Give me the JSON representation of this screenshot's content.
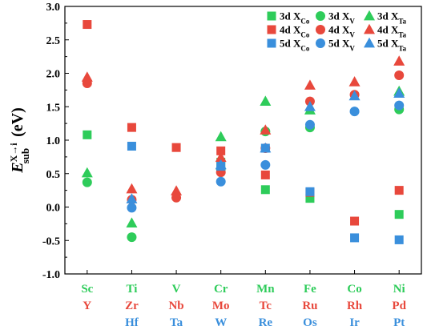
{
  "chart_data": {
    "type": "scatter",
    "ylabel": {
      "main": "E",
      "sub": "sub",
      "sup": "X→i",
      "unit": "(eV)"
    },
    "ylim": [
      -1.0,
      3.0
    ],
    "yticks": [
      "-1.0",
      "-0.5",
      "0.0",
      "0.5",
      "1.0",
      "1.5",
      "2.0",
      "2.5",
      "3.0"
    ],
    "yticks_values": [
      -1.0,
      -0.5,
      0.0,
      0.5,
      1.0,
      1.5,
      2.0,
      2.5,
      3.0
    ],
    "grid": false,
    "legend_position": "top-right",
    "colors": {
      "3d": "#2ecc5a",
      "4d": "#e8483c",
      "5d": "#3a8fdc"
    },
    "category_rows": [
      {
        "row": "3d",
        "labels": [
          "Sc",
          "Ti",
          "V",
          "Cr",
          "Mn",
          "Fe",
          "Co",
          "Ni"
        ]
      },
      {
        "row": "4d",
        "labels": [
          "Y",
          "Zr",
          "Nb",
          "Mo",
          "Tc",
          "Ru",
          "Rh",
          "Pd"
        ]
      },
      {
        "row": "5d",
        "labels": [
          "Hf",
          "Ta",
          "W",
          "Re",
          "Os",
          "Ir",
          "Pt"
        ]
      }
    ],
    "legend": [
      {
        "row": "3d",
        "marker": "square",
        "prefix": "3d X",
        "sub": "Co"
      },
      {
        "row": "3d",
        "marker": "circle",
        "prefix": "3d X",
        "sub": "V"
      },
      {
        "row": "3d",
        "marker": "triangle",
        "prefix": "3d X",
        "sub": "Ta"
      },
      {
        "row": "4d",
        "marker": "square",
        "prefix": "4d X",
        "sub": "Co"
      },
      {
        "row": "4d",
        "marker": "circle",
        "prefix": "4d X",
        "sub": "V"
      },
      {
        "row": "4d",
        "marker": "triangle",
        "prefix": "4d X",
        "sub": "Ta"
      },
      {
        "row": "5d",
        "marker": "square",
        "prefix": "5d X",
        "sub": "Co"
      },
      {
        "row": "5d",
        "marker": "circle",
        "prefix": "5d X",
        "sub": "V"
      },
      {
        "row": "5d",
        "marker": "triangle",
        "prefix": "5d X",
        "sub": "Ta"
      }
    ],
    "series": [
      {
        "row": "3d",
        "marker": "square",
        "values": [
          1.08,
          null,
          null,
          0.67,
          0.26,
          0.13,
          null,
          -0.11
        ]
      },
      {
        "row": "3d",
        "marker": "circle",
        "values": [
          0.37,
          -0.45,
          null,
          0.57,
          1.13,
          1.19,
          null,
          1.46
        ]
      },
      {
        "row": "3d",
        "marker": "triangle",
        "values": [
          0.51,
          -0.24,
          null,
          1.05,
          1.58,
          1.45,
          null,
          1.73
        ]
      },
      {
        "row": "4d",
        "marker": "square",
        "values": [
          2.73,
          1.19,
          0.89,
          0.84,
          0.48,
          0.22,
          -0.21,
          0.25
        ]
      },
      {
        "row": "4d",
        "marker": "circle",
        "values": [
          1.85,
          0.11,
          0.14,
          0.52,
          0.88,
          1.58,
          1.68,
          1.97
        ]
      },
      {
        "row": "4d",
        "marker": "triangle",
        "values": [
          1.94,
          0.27,
          0.24,
          0.74,
          1.15,
          1.82,
          1.87,
          2.18
        ]
      },
      {
        "row": "5d",
        "marker": "square",
        "values": [
          null,
          0.91,
          null,
          0.61,
          0.88,
          0.23,
          -0.46,
          -0.49
        ]
      },
      {
        "row": "5d",
        "marker": "circle",
        "values": [
          null,
          -0.01,
          null,
          0.38,
          0.63,
          1.23,
          1.43,
          1.52
        ]
      },
      {
        "row": "5d",
        "marker": "triangle",
        "values": [
          null,
          0.12,
          null,
          0.63,
          0.88,
          1.5,
          1.66,
          1.7
        ]
      }
    ]
  }
}
